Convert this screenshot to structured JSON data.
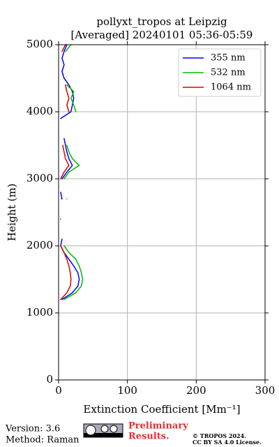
{
  "chart_data": {
    "type": "line",
    "title": "pollyxt_tropos at Leipzig",
    "subtitle": "[Averaged] 20240101 05:36-05:59",
    "xlabel": "Extinction Coefficient [Mm⁻¹]",
    "ylabel": "Height (m)",
    "xlim": [
      0,
      300
    ],
    "xticks": [
      0,
      100,
      200,
      300
    ],
    "ylim": [
      0,
      5000
    ],
    "yticks": [
      0,
      1000,
      2000,
      3000,
      4000,
      5000
    ],
    "grid": true,
    "legend": "upper right",
    "y": [
      1100,
      1200,
      1300,
      1400,
      1500,
      1600,
      1700,
      1800,
      1900,
      2000,
      2100,
      2200,
      2300,
      2400,
      2500,
      2600,
      2700,
      2800,
      2900,
      3000,
      3100,
      3200,
      3300,
      3400,
      3500,
      3600,
      3700,
      3800,
      3900,
      4000,
      4100,
      4200,
      4300,
      4400,
      4500,
      4600,
      4700,
      4800,
      4900,
      5000
    ],
    "series": [
      {
        "name": "355 nm",
        "color": "#0000ff",
        "values": [
          null,
          5,
          20,
          28,
          30,
          28,
          22,
          15,
          8,
          3,
          5,
          null,
          null,
          3,
          null,
          null,
          5,
          3,
          null,
          5,
          12,
          20,
          15,
          12,
          10,
          8,
          null,
          null,
          3,
          18,
          20,
          22,
          20,
          15,
          8,
          5,
          8,
          5,
          8,
          12
        ]
      },
      {
        "name": "532 nm",
        "color": "#00bb00",
        "values": [
          null,
          8,
          25,
          33,
          35,
          33,
          30,
          25,
          15,
          8,
          null,
          null,
          null,
          null,
          null,
          null,
          12,
          null,
          null,
          8,
          15,
          30,
          20,
          15,
          12,
          null,
          null,
          null,
          null,
          25,
          22,
          18,
          22,
          12,
          null,
          null,
          null,
          null,
          10,
          18
        ]
      },
      {
        "name": "1064 nm",
        "color": "#dd0000",
        "values": [
          null,
          3,
          12,
          17,
          18,
          17,
          15,
          12,
          8,
          3,
          null,
          null,
          null,
          null,
          null,
          null,
          4,
          null,
          null,
          3,
          8,
          15,
          10,
          8,
          6,
          null,
          null,
          null,
          null,
          15,
          12,
          15,
          12,
          10,
          null,
          null,
          null,
          null,
          5,
          10
        ]
      }
    ]
  },
  "footer": {
    "version": "Version: 3.6",
    "method": "Method: Raman",
    "preliminary": [
      "Preliminary",
      "Results."
    ],
    "copyright": [
      "© TROPOS 2024.",
      "CC BY SA 4.0 License."
    ]
  }
}
